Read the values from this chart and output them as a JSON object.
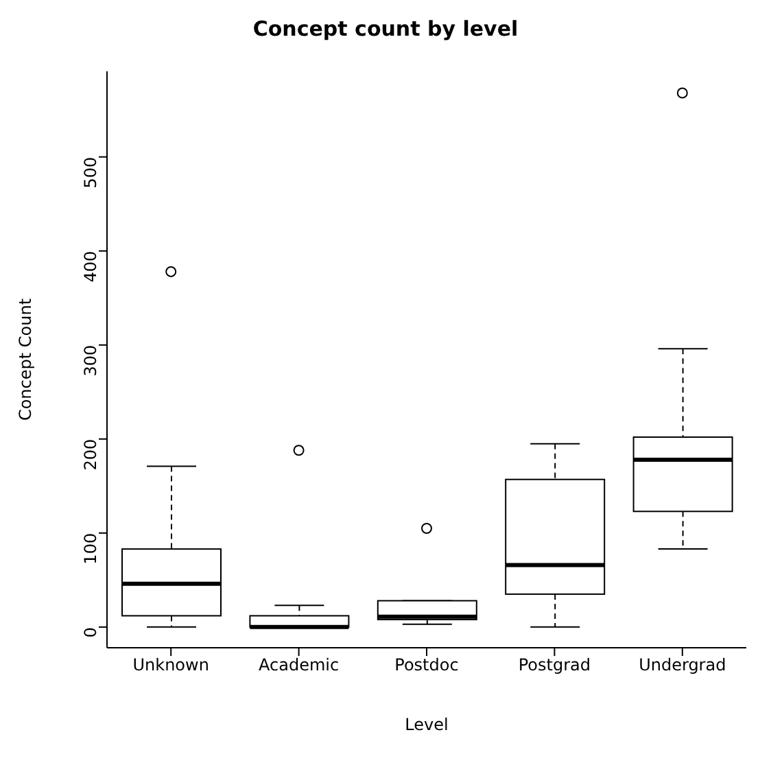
{
  "chart_data": {
    "type": "box",
    "title": "Concept count by level",
    "xlabel": "Level",
    "ylabel": "Concept Count",
    "categories": [
      "Unknown",
      "Academic",
      "Postdoc",
      "Postgrad",
      "Undergrad"
    ],
    "boxes": [
      {
        "low": 0,
        "q1": 12,
        "median": 46,
        "q3": 83,
        "high": 171,
        "outliers": [
          378
        ]
      },
      {
        "low": 0,
        "q1": 0,
        "median": 0,
        "q3": 12,
        "high": 23,
        "outliers": [
          188
        ]
      },
      {
        "low": 3,
        "q1": 8,
        "median": 11,
        "q3": 28,
        "high": 28,
        "outliers": [
          105
        ]
      },
      {
        "low": 0,
        "q1": 35,
        "median": 66,
        "q3": 157,
        "high": 195
      },
      {
        "low": 83,
        "q1": 123,
        "median": 178,
        "q3": 202,
        "high": 296,
        "outliers": [
          568
        ]
      }
    ],
    "ylim": [
      -22,
      591
    ],
    "yticks": [
      0,
      100,
      200,
      300,
      400,
      500
    ]
  }
}
